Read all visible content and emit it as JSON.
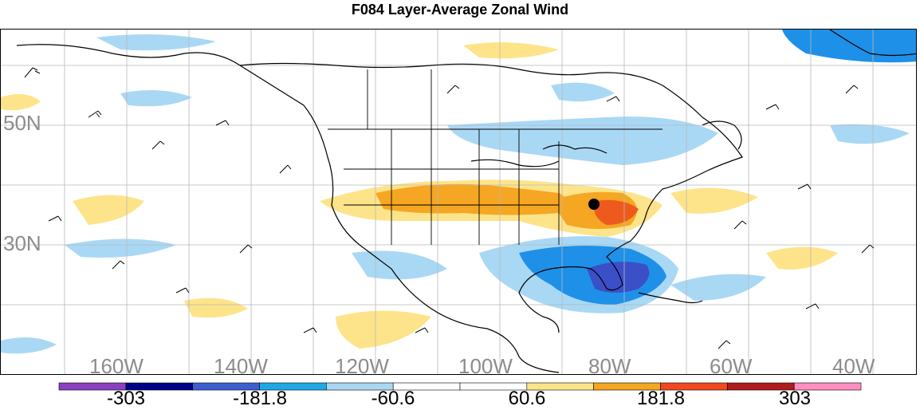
{
  "title": "F084 Layer-Average Zonal Wind",
  "lat_labels": [
    "50N",
    "30N"
  ],
  "lon_labels": [
    "160W",
    "140W",
    "120W",
    "100W",
    "80W",
    "60W",
    "40W"
  ],
  "colorbar": {
    "colors": [
      "#8b3fbf",
      "#00008b",
      "#3b5fcf",
      "#1ea8e8",
      "#a9d8f5",
      "#ffffff",
      "#ffffff",
      "#fde48a",
      "#f5a623",
      "#f04a1e",
      "#b01c1c",
      "#ff8fc0"
    ],
    "tick_labels": [
      "-303",
      "-181.8",
      "-60.6",
      "60.6",
      "181.8",
      "303"
    ]
  },
  "contour_colors": {
    "strong_negative": "#3b4fc8",
    "negative": "#1e90e8",
    "weak_negative": "#a9d8f5",
    "weak_positive": "#fde48a",
    "positive": "#f5a623",
    "strong_positive": "#ee5a1e"
  }
}
